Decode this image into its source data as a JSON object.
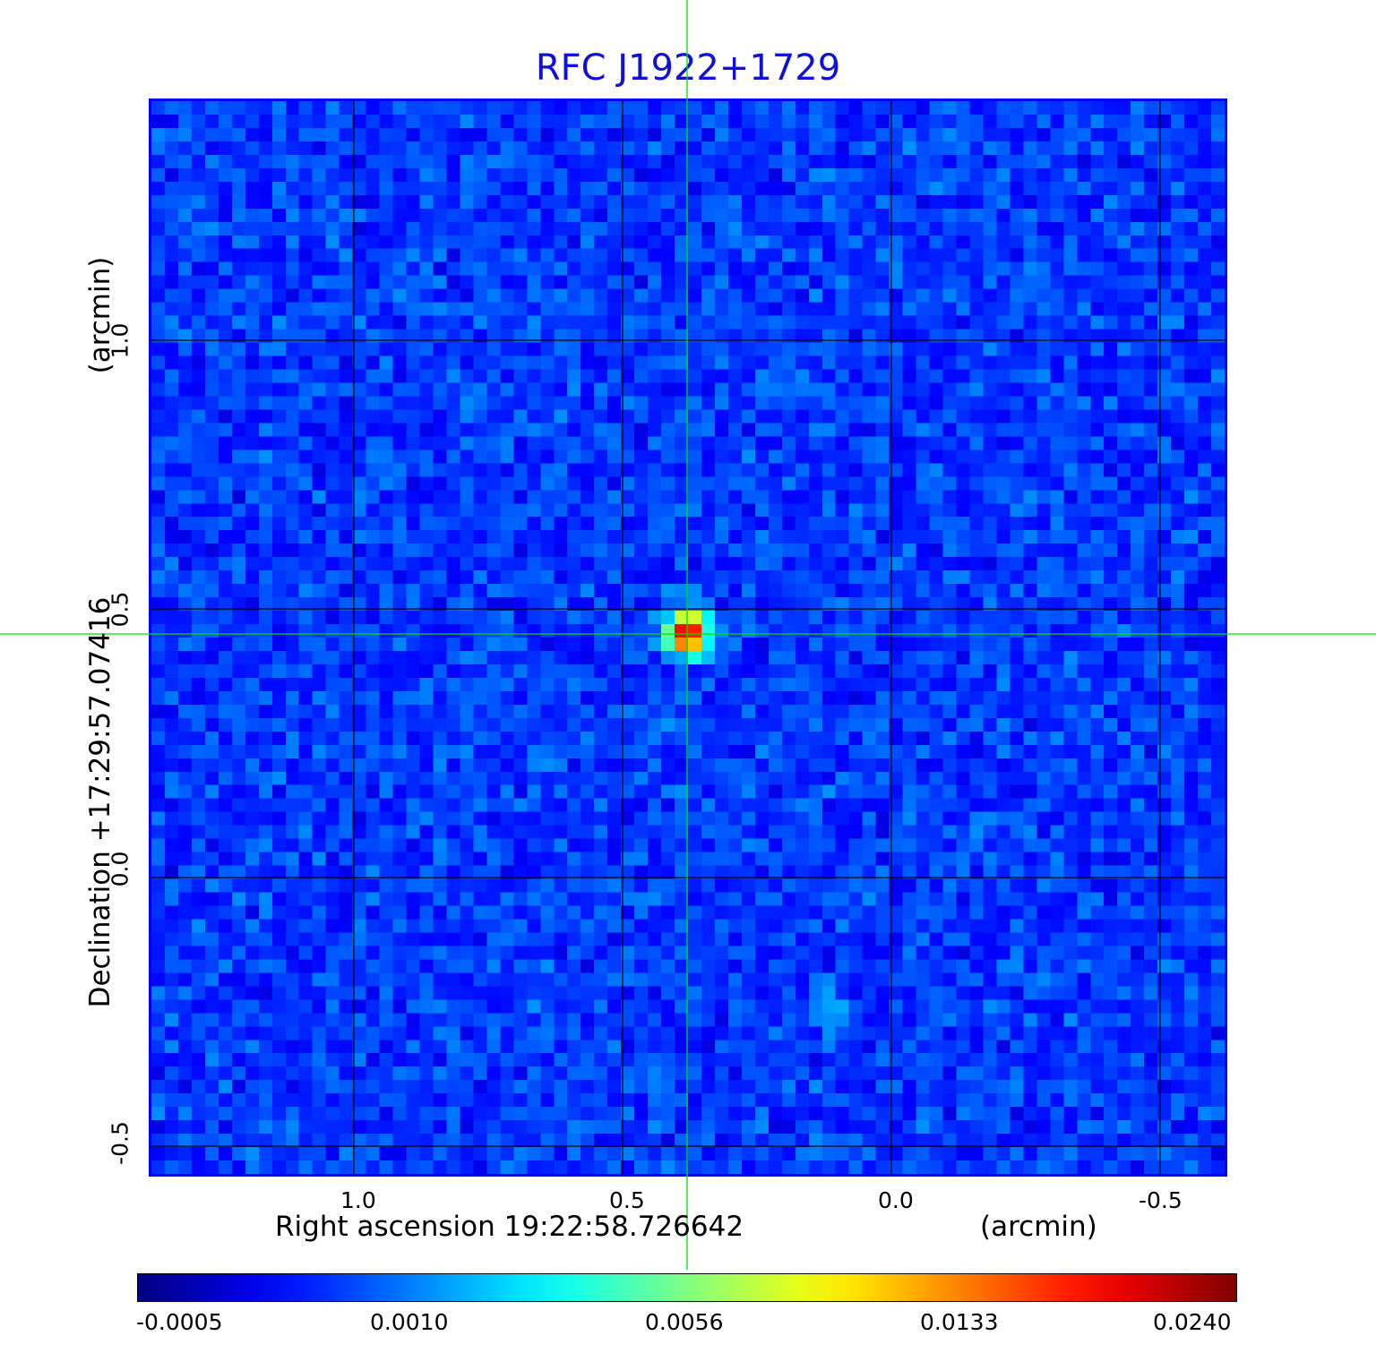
{
  "title": "RFC J1922+1729",
  "axes": {
    "x_label": "Right ascension  19:22:58.726642",
    "x_unit": "(arcmin)",
    "y_label": "Declination  +17:29:57.07416",
    "y_unit": "(arcmin)",
    "x_ticks": [
      "1.0",
      "0.5",
      "0.0",
      "-0.5"
    ],
    "y_ticks": [
      "1.0",
      "0.5",
      "0.0",
      "-0.5"
    ]
  },
  "colorbar": {
    "labels": [
      "-0.0005",
      "0.0010",
      "0.0056",
      "0.0133",
      "0.0240"
    ]
  },
  "colors": {
    "frame": "#0000ff",
    "title": "#1010d8",
    "crosshair": "#00e000",
    "grid": "#000000"
  }
}
